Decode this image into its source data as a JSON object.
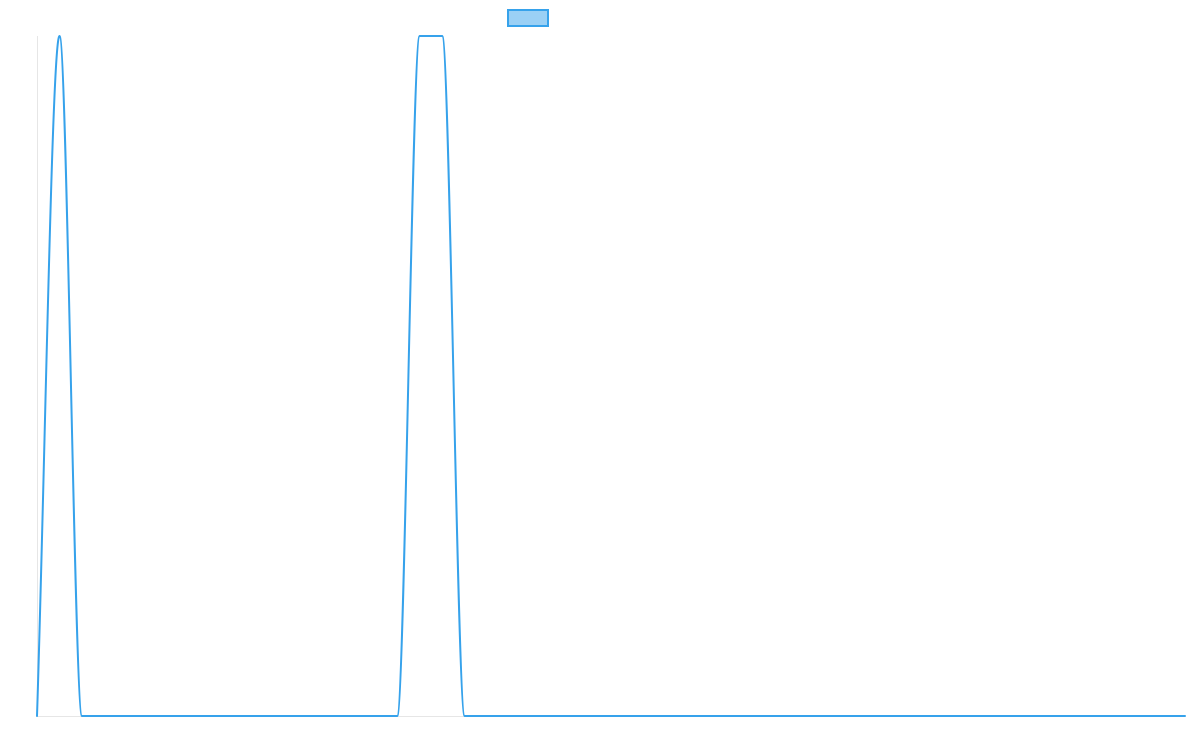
{
  "chart_data": {
    "type": "line",
    "title": "",
    "xlabel": "",
    "ylabel": "",
    "grid": false,
    "legend_placement": "top-center",
    "x": [
      0,
      1,
      2,
      3,
      4,
      5,
      6,
      7,
      8,
      9,
      10,
      11,
      12,
      13,
      14,
      15,
      16,
      17,
      18,
      19,
      20,
      21,
      22,
      23,
      24,
      25,
      26,
      27,
      28,
      29,
      30,
      31,
      32,
      33,
      34,
      35,
      36,
      37,
      38,
      39,
      40,
      41,
      42,
      43,
      44,
      45,
      46,
      47,
      48,
      49,
      50,
      51
    ],
    "xlim": [
      0,
      51
    ],
    "ylim": [
      0,
      1
    ],
    "series": [
      {
        "name": "",
        "color": "#36A2EB",
        "fill_color": "#9AD0F5",
        "values": [
          0,
          1,
          0,
          0,
          0,
          0,
          0,
          0,
          0,
          0,
          0,
          0,
          0,
          0,
          0,
          0,
          0,
          1,
          1,
          0,
          0,
          0,
          0,
          0,
          0,
          0,
          0,
          0,
          0,
          0,
          0,
          0,
          0,
          0,
          0,
          0,
          0,
          0,
          0,
          0,
          0,
          0,
          0,
          0,
          0,
          0,
          0,
          0,
          0,
          0,
          0,
          0
        ]
      }
    ]
  }
}
